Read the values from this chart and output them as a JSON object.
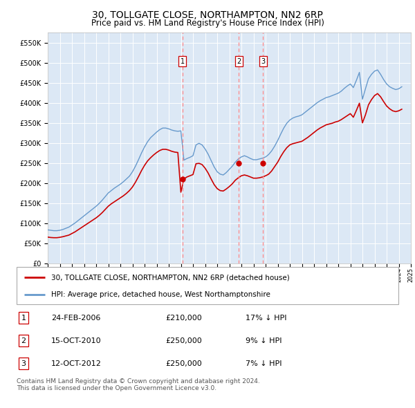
{
  "title": "30, TOLLGATE CLOSE, NORTHAMPTON, NN2 6RP",
  "subtitle": "Price paid vs. HM Land Registry's House Price Index (HPI)",
  "title_fontsize": 10,
  "subtitle_fontsize": 8.5,
  "plot_bg_color": "#dce8f5",
  "ylim": [
    0,
    575000
  ],
  "yticks": [
    0,
    50000,
    100000,
    150000,
    200000,
    250000,
    300000,
    350000,
    400000,
    450000,
    500000,
    550000
  ],
  "red_line_color": "#cc0000",
  "blue_line_color": "#6699cc",
  "grid_color": "#ffffff",
  "transactions": [
    {
      "date_num": 2006.13,
      "price": 210000,
      "label": "1"
    },
    {
      "date_num": 2010.79,
      "price": 250000,
      "label": "2"
    },
    {
      "date_num": 2012.79,
      "price": 250000,
      "label": "3"
    }
  ],
  "transaction_vline_color": "#ff8888",
  "marker_box_color": "#cc0000",
  "legend_entries": [
    "30, TOLLGATE CLOSE, NORTHAMPTON, NN2 6RP (detached house)",
    "HPI: Average price, detached house, West Northamptonshire"
  ],
  "table_rows": [
    [
      "1",
      "24-FEB-2006",
      "£210,000",
      "17% ↓ HPI"
    ],
    [
      "2",
      "15-OCT-2010",
      "£250,000",
      "9% ↓ HPI"
    ],
    [
      "3",
      "12-OCT-2012",
      "£250,000",
      "7% ↓ HPI"
    ]
  ],
  "footer_text": "Contains HM Land Registry data © Crown copyright and database right 2024.\nThis data is licensed under the Open Government Licence v3.0.",
  "hpi_data": {
    "years": [
      1995,
      1995.25,
      1995.5,
      1995.75,
      1996,
      1996.25,
      1996.5,
      1996.75,
      1997,
      1997.25,
      1997.5,
      1997.75,
      1998,
      1998.25,
      1998.5,
      1998.75,
      1999,
      1999.25,
      1999.5,
      1999.75,
      2000,
      2000.25,
      2000.5,
      2000.75,
      2001,
      2001.25,
      2001.5,
      2001.75,
      2002,
      2002.25,
      2002.5,
      2002.75,
      2003,
      2003.25,
      2003.5,
      2003.75,
      2004,
      2004.25,
      2004.5,
      2004.75,
      2005,
      2005.25,
      2005.5,
      2005.75,
      2006,
      2006.25,
      2006.5,
      2006.75,
      2007,
      2007.25,
      2007.5,
      2007.75,
      2008,
      2008.25,
      2008.5,
      2008.75,
      2009,
      2009.25,
      2009.5,
      2009.75,
      2010,
      2010.25,
      2010.5,
      2010.75,
      2011,
      2011.25,
      2011.5,
      2011.75,
      2012,
      2012.25,
      2012.5,
      2012.75,
      2013,
      2013.25,
      2013.5,
      2013.75,
      2014,
      2014.25,
      2014.5,
      2014.75,
      2015,
      2015.25,
      2015.5,
      2015.75,
      2016,
      2016.25,
      2016.5,
      2016.75,
      2017,
      2017.25,
      2017.5,
      2017.75,
      2018,
      2018.25,
      2018.5,
      2018.75,
      2019,
      2019.25,
      2019.5,
      2019.75,
      2020,
      2020.25,
      2020.5,
      2020.75,
      2021,
      2021.25,
      2021.5,
      2021.75,
      2022,
      2022.25,
      2022.5,
      2022.75,
      2023,
      2023.25,
      2023.5,
      2023.75,
      2024,
      2024.25
    ],
    "blue_values": [
      83000,
      82000,
      81000,
      81000,
      82000,
      84000,
      87000,
      90000,
      95000,
      100000,
      106000,
      112000,
      118000,
      124000,
      130000,
      136000,
      142000,
      149000,
      157000,
      166000,
      175000,
      181000,
      187000,
      192000,
      197000,
      203000,
      210000,
      217000,
      228000,
      242000,
      258000,
      275000,
      290000,
      303000,
      313000,
      320000,
      327000,
      333000,
      337000,
      337000,
      335000,
      332000,
      330000,
      329000,
      330000,
      257000,
      261000,
      264000,
      268000,
      295000,
      299000,
      295000,
      285000,
      272000,
      256000,
      240000,
      228000,
      222000,
      220000,
      226000,
      234000,
      242000,
      252000,
      260000,
      265000,
      268000,
      265000,
      261000,
      258000,
      258000,
      260000,
      262000,
      265000,
      271000,
      280000,
      292000,
      306000,
      322000,
      337000,
      349000,
      357000,
      362000,
      365000,
      367000,
      370000,
      376000,
      382000,
      388000,
      394000,
      400000,
      405000,
      409000,
      413000,
      415000,
      418000,
      421000,
      424000,
      429000,
      436000,
      442000,
      447000,
      438000,
      456000,
      476000,
      409000,
      435000,
      460000,
      471000,
      479000,
      482000,
      471000,
      458000,
      447000,
      440000,
      436000,
      433000,
      435000,
      440000
    ],
    "red_values": [
      65000,
      64000,
      63500,
      63500,
      64500,
      66000,
      68000,
      70000,
      74000,
      78000,
      83000,
      88000,
      93000,
      98000,
      103000,
      108000,
      113000,
      119000,
      126000,
      134000,
      142000,
      148000,
      153000,
      158000,
      163000,
      168000,
      174000,
      181000,
      190000,
      202000,
      216000,
      231000,
      244000,
      255000,
      263000,
      270000,
      276000,
      281000,
      284000,
      284000,
      282000,
      279000,
      277000,
      276000,
      177000,
      210000,
      215000,
      218000,
      221000,
      248000,
      249000,
      246000,
      237000,
      225000,
      210000,
      196000,
      186000,
      181000,
      180000,
      185000,
      191000,
      198000,
      207000,
      213000,
      218000,
      220000,
      218000,
      215000,
      212000,
      212000,
      213000,
      215000,
      218000,
      222000,
      230000,
      241000,
      252000,
      266000,
      278000,
      288000,
      295000,
      298000,
      300000,
      302000,
      304000,
      309000,
      314000,
      320000,
      326000,
      332000,
      337000,
      341000,
      345000,
      347000,
      349000,
      352000,
      354000,
      358000,
      363000,
      368000,
      373000,
      364000,
      381000,
      399000,
      350000,
      370000,
      395000,
      408000,
      418000,
      423000,
      415000,
      403000,
      392000,
      385000,
      380000,
      378000,
      380000,
      384000
    ]
  }
}
